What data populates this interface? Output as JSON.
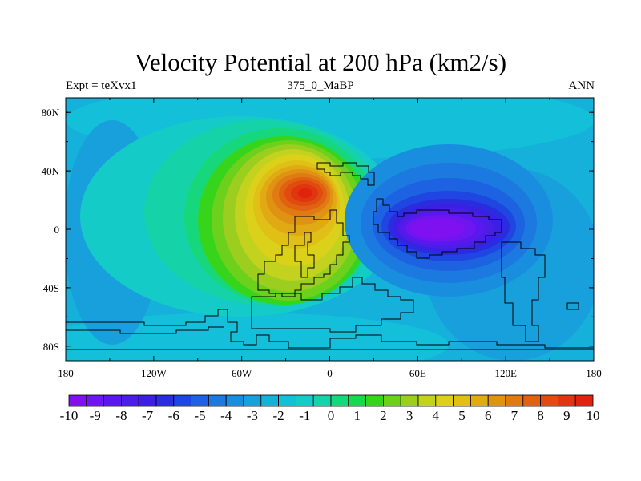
{
  "title": "Velocity Potential at 200 hPa (km2/s)",
  "subtitle_left": "Expt = teXvx1",
  "subtitle_center": "375_0_MaBP",
  "subtitle_right": "ANN",
  "chart_data": {
    "type": "heatmap",
    "title": "Velocity Potential at 200 hPa (km2/s)",
    "xlim": [
      -180,
      180
    ],
    "ylim": [
      -90,
      90
    ],
    "x_ticks": [
      {
        "value": -180,
        "label": "180"
      },
      {
        "value": -120,
        "label": "120W"
      },
      {
        "value": -60,
        "label": "60W"
      },
      {
        "value": 0,
        "label": "0"
      },
      {
        "value": 60,
        "label": "60E"
      },
      {
        "value": 120,
        "label": "120E"
      },
      {
        "value": 180,
        "label": "180"
      }
    ],
    "y_ticks": [
      {
        "value": 80,
        "label": "80N"
      },
      {
        "value": 40,
        "label": "40N"
      },
      {
        "value": 0,
        "label": "0"
      },
      {
        "value": -40,
        "label": "40S"
      },
      {
        "value": -80,
        "label": "80S"
      }
    ],
    "contour_min": -10,
    "contour_max": 10,
    "contour_interval": 0.5,
    "colorbar_labels": [
      "-10",
      "-9",
      "-8",
      "-7",
      "-6",
      "-5",
      "-4",
      "-3",
      "-2",
      "-1",
      "0",
      "1",
      "2",
      "3",
      "4",
      "5",
      "6",
      "7",
      "8",
      "9",
      "10"
    ],
    "colors": [
      "#7f10f0",
      "#6d16ef",
      "#5a18ee",
      "#4b1ee8",
      "#3b1fe3",
      "#2b2be0",
      "#1f46e0",
      "#1c62e1",
      "#1b79e0",
      "#1a8ede",
      "#18a0dc",
      "#15b1db",
      "#13bfd9",
      "#14cbc8",
      "#16d2a8",
      "#17d77d",
      "#18d94a",
      "#36d41b",
      "#6bd11d",
      "#9cce1f",
      "#c3d21e",
      "#dcd11a",
      "#e0c017",
      "#e0aa14",
      "#e09313",
      "#e07a12",
      "#e06210",
      "#e04b0f",
      "#e0350e",
      "#df230d"
    ],
    "field_centers": [
      {
        "name": "high-africa-atlantic",
        "lon": -12,
        "lat": 23,
        "value": 9.6
      },
      {
        "name": "low-indian-ocean",
        "lon": 78,
        "lat": 0,
        "value": -9.6
      }
    ]
  }
}
